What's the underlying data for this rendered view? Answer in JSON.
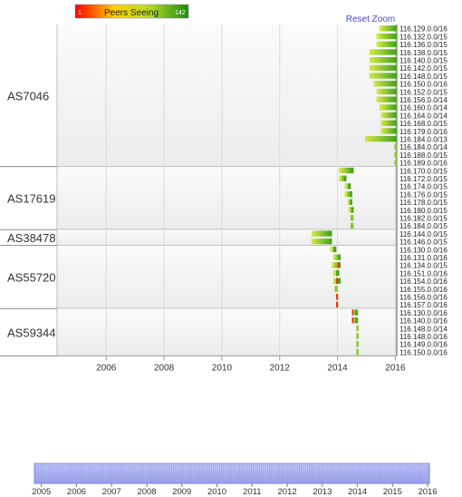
{
  "legend": {
    "min": "1",
    "label": "Peers Seeing",
    "max": "142"
  },
  "reset_zoom": "Reset Zoom",
  "chart_data": {
    "type": "timeline-heatmap",
    "xlim": [
      2004.3,
      2016.05
    ],
    "x_ticks": [
      "2006",
      "2008",
      "2010",
      "2012",
      "2014",
      "2016"
    ],
    "groups": [
      {
        "name": "AS7046",
        "prefixes": [
          {
            "prefix": "116.129.0.0/16",
            "start": 2015.45,
            "end": 2016.05
          },
          {
            "prefix": "116.132.0.0/15",
            "start": 2015.35,
            "end": 2016.05
          },
          {
            "prefix": "116.136.0.0/15",
            "start": 2015.35,
            "end": 2016.05
          },
          {
            "prefix": "116.138.0.0/15",
            "start": 2015.1,
            "end": 2016.05
          },
          {
            "prefix": "116.140.0.0/15",
            "start": 2015.1,
            "end": 2016.05
          },
          {
            "prefix": "116.142.0.0/15",
            "start": 2015.1,
            "end": 2016.05
          },
          {
            "prefix": "116.148.0.0/15",
            "start": 2015.1,
            "end": 2016.05
          },
          {
            "prefix": "116.150.0.0/16",
            "start": 2015.25,
            "end": 2016.05
          },
          {
            "prefix": "116.152.0.0/15",
            "start": 2015.35,
            "end": 2016.05
          },
          {
            "prefix": "116.156.0.0/14",
            "start": 2015.35,
            "end": 2016.05
          },
          {
            "prefix": "116.160.0.0/14",
            "start": 2015.45,
            "end": 2016.05
          },
          {
            "prefix": "116.164.0.0/14",
            "start": 2015.5,
            "end": 2016.05
          },
          {
            "prefix": "116.168.0.0/15",
            "start": 2015.5,
            "end": 2016.05
          },
          {
            "prefix": "116.179.0.0/16",
            "start": 2015.5,
            "end": 2016.05
          },
          {
            "prefix": "116.184.0.0/13",
            "start": 2014.95,
            "end": 2016.05
          },
          {
            "prefix": "116.184.0.0/14",
            "start": 2015.97,
            "end": 2016.05
          },
          {
            "prefix": "116.188.0.0/15",
            "start": 2015.97,
            "end": 2016.05
          },
          {
            "prefix": "116.189.0.0/16",
            "start": 2015.97,
            "end": 2016.05
          }
        ]
      },
      {
        "name": "AS17619",
        "prefixes": [
          {
            "prefix": "116.170.0.0/15",
            "start": 2014.05,
            "end": 2014.55
          },
          {
            "prefix": "116.172.0.0/15",
            "start": 2014.05,
            "end": 2014.3
          },
          {
            "prefix": "116.174.0.0/15",
            "start": 2014.25,
            "end": 2014.45
          },
          {
            "prefix": "116.176.0.0/15",
            "start": 2014.25,
            "end": 2014.5
          },
          {
            "prefix": "116.178.0.0/15",
            "start": 2014.35,
            "end": 2014.5
          },
          {
            "prefix": "116.180.0.0/15",
            "start": 2014.38,
            "end": 2014.55
          },
          {
            "prefix": "116.182.0.0/15",
            "start": 2014.45,
            "end": 2014.55
          },
          {
            "prefix": "116.184.0.0/15",
            "start": 2014.45,
            "end": 2014.55
          }
        ]
      },
      {
        "name": "AS38478",
        "prefixes": [
          {
            "prefix": "116.144.0.0/15",
            "start": 2013.1,
            "end": 2013.8
          },
          {
            "prefix": "116.146.0.0/15",
            "start": 2013.1,
            "end": 2013.8
          }
        ]
      },
      {
        "name": "AS55720",
        "prefixes": [
          {
            "prefix": "116.130.0.0/16",
            "start": 2013.75,
            "end": 2013.95
          },
          {
            "prefix": "116.131.0.0/16",
            "start": 2013.85,
            "end": 2014.1
          },
          {
            "prefix": "116.134.0.0/15",
            "start": 2013.8,
            "end": 2014.1,
            "red_at": 2014.0
          },
          {
            "prefix": "116.151.0.0/16",
            "start": 2013.85,
            "end": 2014.05
          },
          {
            "prefix": "116.154.0.0/16",
            "start": 2013.85,
            "end": 2014.1,
            "red_at": 2013.95
          },
          {
            "prefix": "116.155.0.0/16",
            "start": 2013.9,
            "end": 2014.0
          },
          {
            "prefix": "116.156.0.0/16",
            "start": 2013.95,
            "end": 2014.02,
            "red_at": 2013.95
          },
          {
            "prefix": "116.157.0.0/16",
            "start": 2013.95,
            "end": 2014.02,
            "red_at": 2013.95
          }
        ]
      },
      {
        "name": "AS59344",
        "prefixes": [
          {
            "prefix": "116.130.0.0/16",
            "start": 2014.5,
            "end": 2014.7,
            "red_at": 2014.5
          },
          {
            "prefix": "116.140.0.0/16",
            "start": 2014.5,
            "end": 2014.7,
            "red_at": 2014.5
          },
          {
            "prefix": "116.148.0.0/14",
            "start": 2014.65,
            "end": 2014.72
          },
          {
            "prefix": "116.148.0.0/16",
            "start": 2014.65,
            "end": 2014.72
          },
          {
            "prefix": "116.149.0.0/16",
            "start": 2014.65,
            "end": 2014.72
          },
          {
            "prefix": "116.150.0.0/16",
            "start": 2014.65,
            "end": 2014.72
          }
        ]
      }
    ],
    "navigator": {
      "xlim": [
        2004.8,
        2016.05
      ],
      "ticks": [
        "2005",
        "2006",
        "2007",
        "2008",
        "2009",
        "2010",
        "2011",
        "2012",
        "2013",
        "2014",
        "2015",
        "2016"
      ]
    }
  }
}
